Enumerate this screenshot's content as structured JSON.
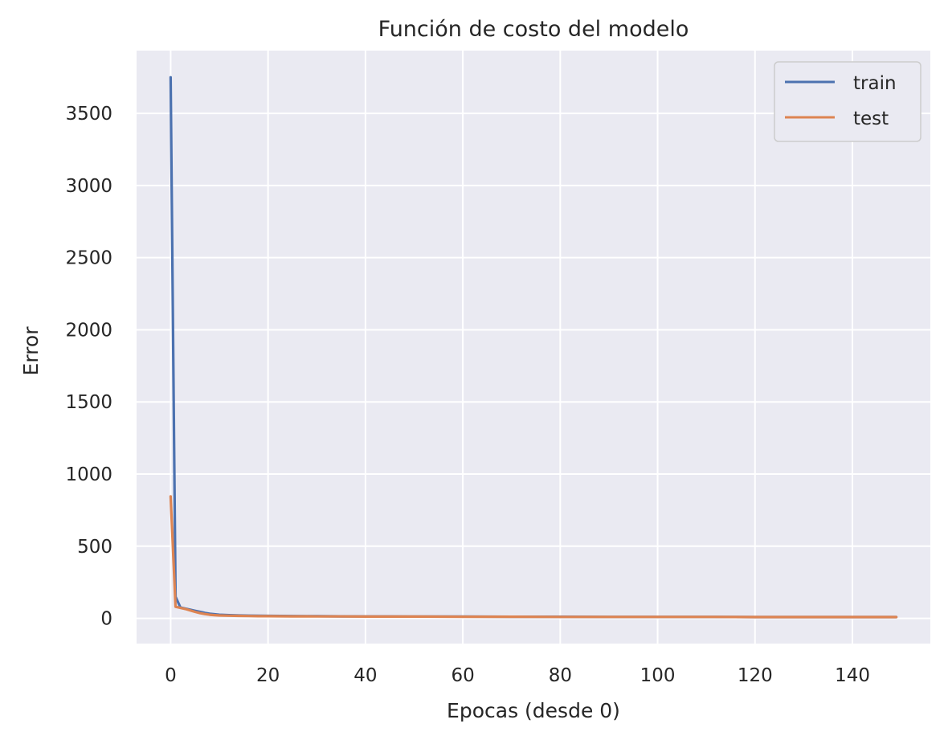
{
  "chart_data": {
    "type": "line",
    "title": "Función de costo del modelo",
    "xlabel": "Epocas (desde 0)",
    "ylabel": "Error",
    "xlim": [
      -7,
      156
    ],
    "ylim": [
      -175,
      3935
    ],
    "xticks": [
      0,
      20,
      40,
      60,
      80,
      100,
      120,
      140
    ],
    "yticks": [
      0,
      500,
      1000,
      1500,
      2000,
      2500,
      3000,
      3500
    ],
    "grid": true,
    "legend_position": "upper-right",
    "colors": {
      "background": "#eaeaf2",
      "grid": "#ffffff",
      "train": "#4c72b0",
      "test": "#dd8452",
      "text": "#262626"
    },
    "series": [
      {
        "name": "train",
        "x": [
          0,
          1,
          2,
          3,
          4,
          5,
          6,
          7,
          8,
          9,
          10,
          12,
          14,
          16,
          18,
          20,
          25,
          30,
          35,
          40,
          45,
          50,
          60,
          70,
          80,
          90,
          100,
          110,
          120,
          130,
          140,
          149
        ],
        "y": [
          3750,
          150,
          75,
          68,
          60,
          52,
          45,
          38,
          32,
          28,
          25,
          22,
          20,
          19,
          18,
          17,
          16,
          15,
          14,
          13,
          13,
          12,
          12,
          11,
          11,
          10,
          10,
          10,
          9,
          9,
          9,
          9
        ]
      },
      {
        "name": "test",
        "x": [
          0,
          1,
          2,
          3,
          4,
          5,
          6,
          7,
          8,
          9,
          10,
          12,
          14,
          16,
          18,
          20,
          25,
          30,
          35,
          40,
          45,
          50,
          60,
          70,
          80,
          90,
          100,
          110,
          120,
          130,
          140,
          149
        ],
        "y": [
          845,
          80,
          72,
          65,
          55,
          45,
          36,
          30,
          25,
          22,
          20,
          18,
          17,
          16,
          15,
          15,
          14,
          13,
          13,
          12,
          12,
          12,
          11,
          11,
          10,
          10,
          10,
          10,
          9,
          9,
          9,
          9
        ]
      }
    ]
  }
}
